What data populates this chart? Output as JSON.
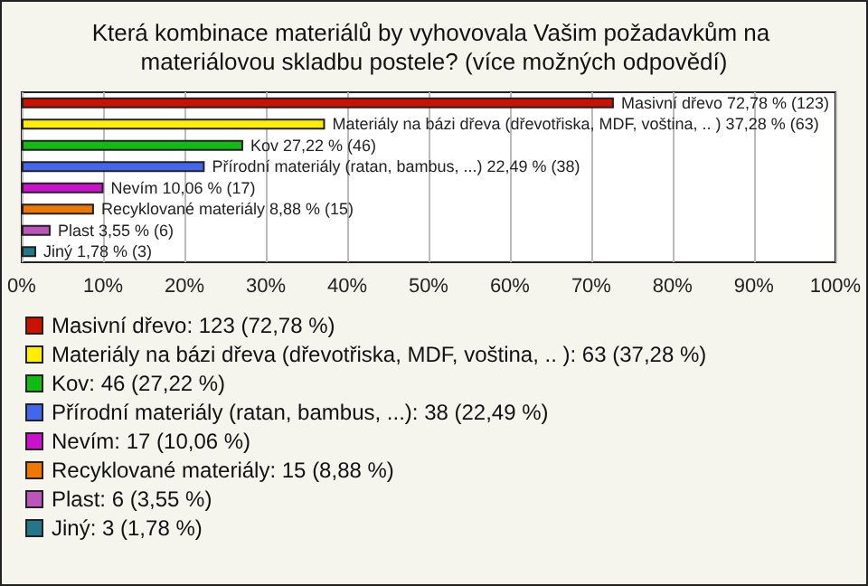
{
  "chart_data": {
    "type": "bar",
    "orientation": "horizontal",
    "title": "Která kombinace materiálů by vyhovovala Vašim požadavkům na materiálovou skladbu postele? (více možných odpovědí)",
    "categories": [
      null,
      null,
      null,
      null,
      null,
      null,
      null,
      null
    ],
    "series": [
      {
        "name": "Masivní dřevo: 123 (72,78 %)",
        "color": "#cc1100",
        "values": [
          72.78,
          null,
          null,
          null,
          null,
          null,
          null,
          null
        ],
        "value_labels": [
          "Masivní dřevo 72,78 % (123)",
          null,
          null,
          null,
          null,
          null,
          null,
          null
        ]
      },
      {
        "name": "Materiály na bázi dřeva (dřevotřiska, MDF, voština, .. ): 63 (37,28 %)",
        "color": "#ffee00",
        "values": [
          null,
          37.28,
          null,
          null,
          null,
          null,
          null,
          null
        ],
        "value_labels": [
          null,
          "Materiály na bázi dřeva (dřevotřiska, MDF, voština, .. ) 37,28 % (63)",
          null,
          null,
          null,
          null,
          null,
          null
        ]
      },
      {
        "name": "Kov: 46 (27,22 %)",
        "color": "#11bb11",
        "values": [
          null,
          null,
          27.22,
          null,
          null,
          null,
          null,
          null
        ],
        "value_labels": [
          null,
          null,
          "Kov 27,22 % (46)",
          null,
          null,
          null,
          null,
          null
        ]
      },
      {
        "name": "Přírodní materiály (ratan, bambus, ...): 38 (22,49 %)",
        "color": "#4466ee",
        "values": [
          null,
          null,
          null,
          22.49,
          null,
          null,
          null,
          null
        ],
        "value_labels": [
          null,
          null,
          null,
          "Přírodní materiály (ratan, bambus, ...) 22,49 % (38)",
          null,
          null,
          null,
          null
        ]
      },
      {
        "name": "Nevím: 17 (10,06 %)",
        "color": "#cc11cc",
        "values": [
          null,
          null,
          null,
          null,
          10.06,
          null,
          null,
          null
        ],
        "value_labels": [
          null,
          null,
          null,
          null,
          "Nevím 10,06 % (17)",
          null,
          null,
          null
        ]
      },
      {
        "name": "Recyklované materiály: 15 (8,88 %)",
        "color": "#ee7700",
        "values": [
          null,
          null,
          null,
          null,
          null,
          8.88,
          null,
          null
        ],
        "value_labels": [
          null,
          null,
          null,
          null,
          null,
          "Recyklované materiály 8,88 % (15)",
          null,
          null
        ]
      },
      {
        "name": "Plast: 6 (3,55 %)",
        "color": "#bb55bb",
        "values": [
          null,
          null,
          null,
          null,
          null,
          null,
          3.55,
          null
        ],
        "value_labels": [
          null,
          null,
          null,
          null,
          null,
          null,
          "Plast 3,55 % (6)",
          null
        ]
      },
      {
        "name": "Jiný: 3 (1,78 %)",
        "color": "#227788",
        "values": [
          null,
          null,
          null,
          null,
          null,
          null,
          null,
          1.78
        ],
        "value_labels": [
          null,
          null,
          null,
          null,
          null,
          null,
          null,
          "Jiný 1,78 % (3)"
        ]
      }
    ],
    "xlim": [
      0,
      100
    ],
    "xticks": [
      {
        "value": 0,
        "label": "0%"
      },
      {
        "value": 10,
        "label": "10%"
      },
      {
        "value": 20,
        "label": "20%"
      },
      {
        "value": 30,
        "label": "30%"
      },
      {
        "value": 40,
        "label": "40%"
      },
      {
        "value": 50,
        "label": "50%"
      },
      {
        "value": 60,
        "label": "60%"
      },
      {
        "value": 70,
        "label": "70%"
      },
      {
        "value": 80,
        "label": "80%"
      },
      {
        "value": 90,
        "label": "90%"
      },
      {
        "value": 100,
        "label": "100%"
      }
    ],
    "grid": "x",
    "legend": "bottom"
  }
}
